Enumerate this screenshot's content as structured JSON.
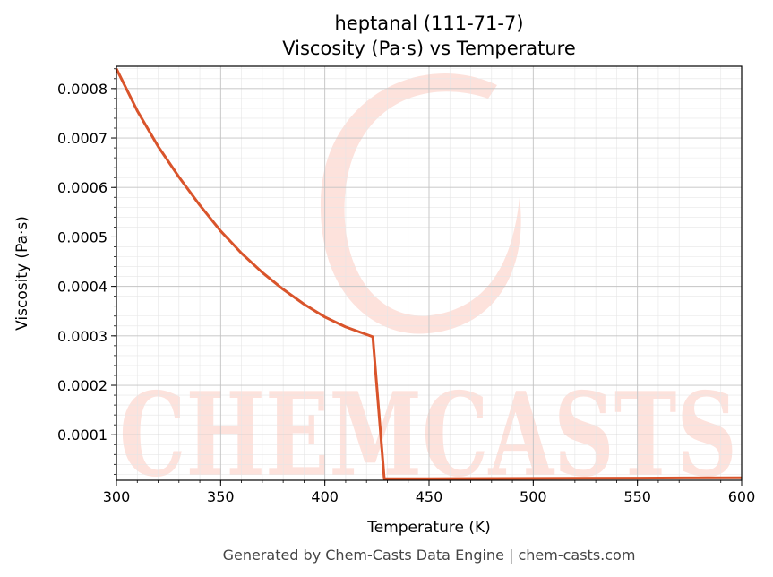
{
  "chart_data": {
    "type": "line",
    "title": "heptanal (111-71-7)",
    "subtitle": "Viscosity (Pa·s) vs Temperature",
    "xlabel": "Temperature (K)",
    "ylabel": "Viscosity (Pa·s)",
    "xlim": [
      300,
      600
    ],
    "ylim": [
      8e-06,
      0.000845
    ],
    "x_ticks": [
      300,
      350,
      400,
      450,
      500,
      550,
      600
    ],
    "x_tick_labels": [
      "300",
      "350",
      "400",
      "450",
      "500",
      "550",
      "600"
    ],
    "y_ticks": [
      0.0001,
      0.0002,
      0.0003,
      0.0004,
      0.0005,
      0.0006,
      0.0007,
      0.0008
    ],
    "y_tick_labels": [
      "0.0001",
      "0.0002",
      "0.0003",
      "0.0004",
      "0.0005",
      "0.0006",
      "0.0007",
      "0.0008"
    ],
    "grid": true,
    "series": [
      {
        "color": "#d9542b",
        "x": [
          300,
          310,
          320,
          330,
          340,
          350,
          360,
          370,
          380,
          390,
          400,
          410,
          423,
          428.5,
          430,
          450,
          500,
          550,
          600
        ],
        "y": [
          0.00084,
          0.000755,
          0.000683,
          0.000621,
          0.000564,
          0.000512,
          0.000467,
          0.000428,
          0.000394,
          0.000364,
          0.000338,
          0.000318,
          0.000298,
          1.1e-05,
          1.1e-05,
          1.12e-05,
          1.18e-05,
          1.24e-05,
          1.3e-05
        ]
      }
    ]
  },
  "watermark": {
    "text": "CHEMCASTS",
    "color": "#fde2dc"
  },
  "footer": "Generated by Chem-Casts Data Engine | chem-casts.com"
}
